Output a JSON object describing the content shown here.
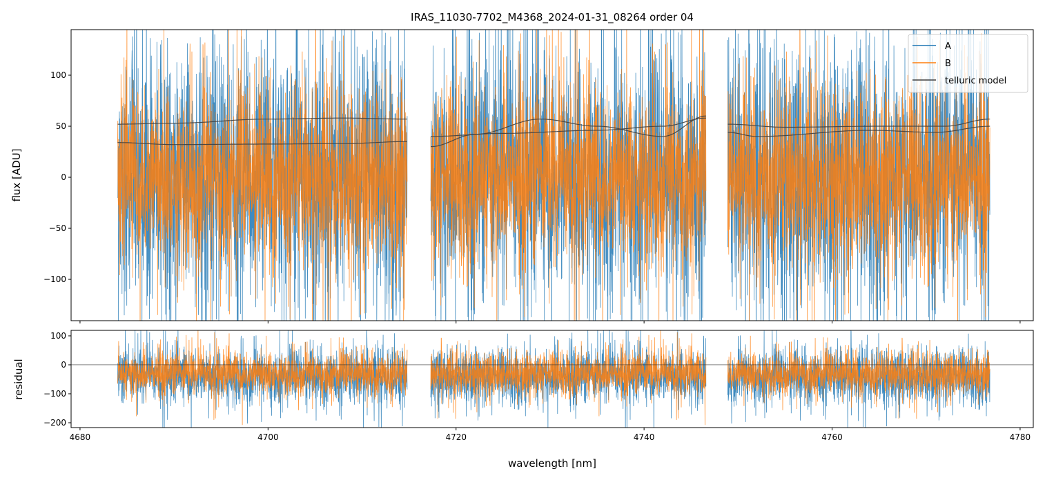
{
  "chart_data": {
    "type": "line",
    "title": "IRAS_11030-7702_M4368_2024-01-31_08264  order 04",
    "xlabel": "wavelength [nm]",
    "panels": [
      {
        "name": "flux",
        "ylabel": "flux [ADU]",
        "xlim": [
          4679.05,
          4781.4
        ],
        "ylim": [
          -140.5,
          144.6
        ],
        "yticks": [
          -100,
          -50,
          0,
          50,
          100
        ],
        "yticklabels": [
          "−100",
          "−50",
          "0",
          "50",
          "100"
        ],
        "series": [
          {
            "name": "A",
            "color": "#1f77b4",
            "kind": "noisy spectrum",
            "mean": 0,
            "std": 60
          },
          {
            "name": "B",
            "color": "#ff7f0e",
            "kind": "noisy spectrum",
            "mean": 0,
            "std": 42
          },
          {
            "name": "telluric model",
            "color": "#404040",
            "curves": [
              {
                "segment": 0,
                "x": [
                  4684,
                  4690,
                  4700,
                  4708,
                  4714.8
                ],
                "y": [
                  52,
                  53,
                  57,
                  58,
                  57
                ]
              },
              {
                "segment": 0,
                "x": [
                  4684,
                  4690,
                  4700,
                  4708,
                  4714.8
                ],
                "y": [
                  34,
                  32,
                  32.5,
                  33,
                  35
                ]
              },
              {
                "segment": 1,
                "x": [
                  4717.3,
                  4722,
                  4729,
                  4735,
                  4742,
                  4746.6
                ],
                "y": [
                  30,
                  42,
                  57,
                  50,
                  40,
                  60
                ]
              },
              {
                "segment": 1,
                "x": [
                  4717.3,
                  4725,
                  4735,
                  4742,
                  4746.6
                ],
                "y": [
                  40,
                  43,
                  46,
                  50,
                  58
                ]
              },
              {
                "segment": 2,
                "x": [
                  4748.9,
                  4755,
                  4765,
                  4772,
                  4776.8
                ],
                "y": [
                  52,
                  49,
                  50,
                  50,
                  57
                ]
              },
              {
                "segment": 2,
                "x": [
                  4748.9,
                  4752,
                  4764,
                  4771,
                  4776.8
                ],
                "y": [
                  44,
                  40,
                  46,
                  44,
                  50
                ]
              }
            ]
          }
        ],
        "legend": {
          "placement": "top-right",
          "entries": [
            "A",
            "B",
            "telluric model"
          ]
        }
      },
      {
        "name": "residual",
        "ylabel": "residual",
        "xlim": [
          4679.05,
          4781.4
        ],
        "ylim": [
          -216.7,
          119
        ],
        "yticks": [
          -200,
          -100,
          0,
          100
        ],
        "yticklabels": [
          "−200",
          "−100",
          "0",
          "100"
        ],
        "zero_line": true,
        "series": [
          {
            "name": "A",
            "color": "#1f77b4",
            "mean": -40,
            "std": 45
          },
          {
            "name": "B",
            "color": "#ff7f0e",
            "mean": -30,
            "std": 35
          }
        ]
      }
    ],
    "xticks": [
      4680,
      4700,
      4720,
      4740,
      4760,
      4780
    ],
    "segments": [
      [
        4684.0,
        4714.8
      ],
      [
        4717.3,
        4746.6
      ],
      [
        4748.9,
        4776.8
      ]
    ],
    "grid": false
  }
}
